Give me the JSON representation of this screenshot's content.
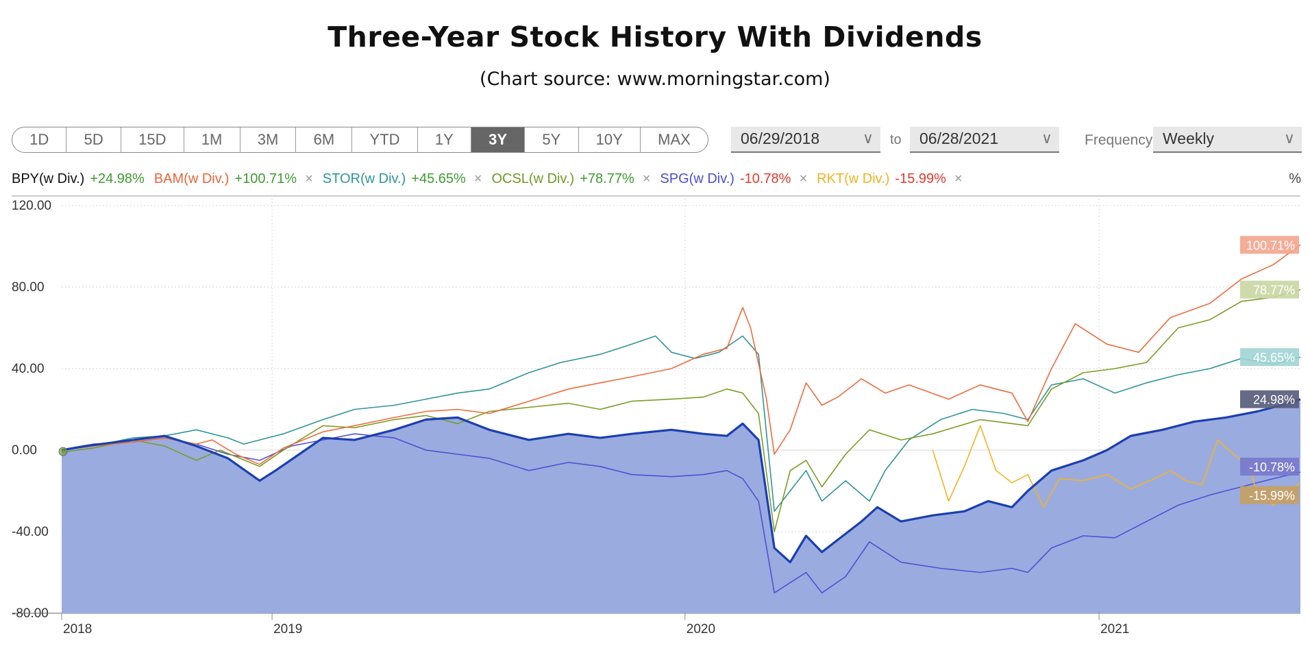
{
  "title": "Three-Year Stock History With Dividends",
  "subtitle": "(Chart source: www.morningstar.com)",
  "controls": {
    "ranges": [
      "1D",
      "5D",
      "15D",
      "1M",
      "3M",
      "6M",
      "YTD",
      "1Y",
      "3Y",
      "5Y",
      "10Y",
      "MAX"
    ],
    "active_range": "3Y",
    "start_date": "06/29/2018",
    "to_label": "to",
    "end_date": "06/28/2021",
    "frequency_label": "Frequency",
    "frequency_value": "Weekly",
    "unit_label": "%"
  },
  "legend": [
    {
      "name": "BPY(w Div.)",
      "change": "+24.98%",
      "name_color": "#111111",
      "change_color": "#3e9a2e",
      "removable": false
    },
    {
      "name": "BAM(w Div.)",
      "change": "+100.71%",
      "name_color": "#e8643a",
      "change_color": "#3e9a2e",
      "removable": true
    },
    {
      "name": "STOR(w Div.)",
      "change": "+45.65%",
      "name_color": "#2e9598",
      "change_color": "#3e9a2e",
      "removable": true
    },
    {
      "name": "OCSL(w Div.)",
      "change": "+78.77%",
      "name_color": "#6f9a22",
      "change_color": "#3e9a2e",
      "removable": true
    },
    {
      "name": "SPG(w Div.)",
      "change": "-10.78%",
      "name_color": "#4a4ed6",
      "change_color": "#e03a2e",
      "removable": true
    },
    {
      "name": "RKT(w Div.)",
      "change": "-15.99%",
      "name_color": "#f1b21f",
      "change_color": "#e03a2e",
      "removable": true
    }
  ],
  "chart_data": {
    "type": "line",
    "x_type": "date",
    "y_unit": "%",
    "ylim": [
      -80,
      120
    ],
    "y_ticks": [
      "120.00",
      "80.00",
      "40.00",
      "0.00",
      "-40.00",
      "-80.00"
    ],
    "x_ticks": [
      "2018",
      "2019",
      "2020",
      "2021"
    ],
    "grid": true,
    "end_labels": [
      "100.71%",
      "78.77%",
      "45.65%",
      "24.98%",
      "-10.78%",
      "-15.99%"
    ],
    "series": [
      {
        "name": "BAM(w Div.)",
        "color": "#ee6b3d",
        "end_label": "100.71%",
        "label_bg": "#f3a48c",
        "points": [
          [
            "2018-06-29",
            0
          ],
          [
            "2018-07-27",
            2
          ],
          [
            "2018-08-31",
            4
          ],
          [
            "2018-09-28",
            6
          ],
          [
            "2018-10-26",
            3
          ],
          [
            "2018-11-09",
            5
          ],
          [
            "2018-11-30",
            -2
          ],
          [
            "2018-12-21",
            -7
          ],
          [
            "2019-01-11",
            1
          ],
          [
            "2019-02-15",
            9
          ],
          [
            "2019-03-15",
            12
          ],
          [
            "2019-04-19",
            16
          ],
          [
            "2019-05-17",
            19
          ],
          [
            "2019-06-14",
            20
          ],
          [
            "2019-07-12",
            18
          ],
          [
            "2019-08-16",
            24
          ],
          [
            "2019-09-20",
            30
          ],
          [
            "2019-10-18",
            33
          ],
          [
            "2019-11-15",
            36
          ],
          [
            "2019-12-20",
            40
          ],
          [
            "2020-01-17",
            47
          ],
          [
            "2020-02-07",
            50
          ],
          [
            "2020-02-21",
            70
          ],
          [
            "2020-02-28",
            60
          ],
          [
            "2020-03-13",
            25
          ],
          [
            "2020-03-20",
            -2
          ],
          [
            "2020-04-03",
            10
          ],
          [
            "2020-04-17",
            33
          ],
          [
            "2020-05-01",
            22
          ],
          [
            "2020-05-15",
            26
          ],
          [
            "2020-06-05",
            35
          ],
          [
            "2020-06-26",
            28
          ],
          [
            "2020-07-17",
            32
          ],
          [
            "2020-08-21",
            25
          ],
          [
            "2020-09-18",
            32
          ],
          [
            "2020-10-16",
            28
          ],
          [
            "2020-10-30",
            14
          ],
          [
            "2020-11-20",
            40
          ],
          [
            "2020-12-11",
            62
          ],
          [
            "2021-01-08",
            52
          ],
          [
            "2021-02-05",
            48
          ],
          [
            "2021-03-05",
            65
          ],
          [
            "2021-04-09",
            72
          ],
          [
            "2021-05-07",
            84
          ],
          [
            "2021-06-04",
            91
          ],
          [
            "2021-06-28",
            100.71
          ]
        ]
      },
      {
        "name": "OCSL(w Div.)",
        "color": "#7b9c24",
        "end_label": "78.77%",
        "label_bg": "#c9d6a3",
        "points": [
          [
            "2018-06-29",
            -1
          ],
          [
            "2018-07-27",
            1
          ],
          [
            "2018-08-31",
            5
          ],
          [
            "2018-09-28",
            2
          ],
          [
            "2018-10-26",
            -5
          ],
          [
            "2018-11-16",
            0
          ],
          [
            "2018-12-21",
            -8
          ],
          [
            "2019-01-11",
            0
          ],
          [
            "2019-02-15",
            12
          ],
          [
            "2019-03-15",
            11
          ],
          [
            "2019-04-19",
            15
          ],
          [
            "2019-05-17",
            17
          ],
          [
            "2019-06-14",
            13
          ],
          [
            "2019-07-12",
            19
          ],
          [
            "2019-08-16",
            21
          ],
          [
            "2019-09-20",
            23
          ],
          [
            "2019-10-18",
            20
          ],
          [
            "2019-11-15",
            24
          ],
          [
            "2019-12-20",
            25
          ],
          [
            "2020-01-17",
            26
          ],
          [
            "2020-02-07",
            30
          ],
          [
            "2020-02-21",
            28
          ],
          [
            "2020-03-06",
            18
          ],
          [
            "2020-03-20",
            -40
          ],
          [
            "2020-04-03",
            -10
          ],
          [
            "2020-04-17",
            -5
          ],
          [
            "2020-05-01",
            -18
          ],
          [
            "2020-05-22",
            -2
          ],
          [
            "2020-06-12",
            10
          ],
          [
            "2020-07-10",
            5
          ],
          [
            "2020-08-07",
            8
          ],
          [
            "2020-09-18",
            15
          ],
          [
            "2020-10-16",
            13
          ],
          [
            "2020-10-30",
            12
          ],
          [
            "2020-11-20",
            30
          ],
          [
            "2020-12-18",
            38
          ],
          [
            "2021-01-15",
            40
          ],
          [
            "2021-02-12",
            43
          ],
          [
            "2021-03-12",
            60
          ],
          [
            "2021-04-09",
            64
          ],
          [
            "2021-05-07",
            73
          ],
          [
            "2021-06-04",
            75
          ],
          [
            "2021-06-28",
            78.77
          ]
        ]
      },
      {
        "name": "STOR(w Div.)",
        "color": "#2f9597",
        "end_label": "45.65%",
        "label_bg": "#9fd4d3",
        "points": [
          [
            "2018-06-29",
            0
          ],
          [
            "2018-07-27",
            2
          ],
          [
            "2018-08-31",
            6
          ],
          [
            "2018-09-28",
            7
          ],
          [
            "2018-10-26",
            10
          ],
          [
            "2018-11-23",
            6
          ],
          [
            "2018-12-07",
            3
          ],
          [
            "2019-01-11",
            8
          ],
          [
            "2019-02-15",
            15
          ],
          [
            "2019-03-15",
            20
          ],
          [
            "2019-04-19",
            22
          ],
          [
            "2019-05-17",
            25
          ],
          [
            "2019-06-14",
            28
          ],
          [
            "2019-07-12",
            30
          ],
          [
            "2019-08-16",
            38
          ],
          [
            "2019-09-13",
            43
          ],
          [
            "2019-10-18",
            47
          ],
          [
            "2019-11-15",
            52
          ],
          [
            "2019-12-06",
            56
          ],
          [
            "2019-12-20",
            48
          ],
          [
            "2020-01-10",
            45
          ],
          [
            "2020-01-31",
            48
          ],
          [
            "2020-02-21",
            56
          ],
          [
            "2020-03-06",
            47
          ],
          [
            "2020-03-20",
            -30
          ],
          [
            "2020-04-03",
            -20
          ],
          [
            "2020-04-17",
            -10
          ],
          [
            "2020-05-01",
            -25
          ],
          [
            "2020-05-22",
            -15
          ],
          [
            "2020-06-12",
            -25
          ],
          [
            "2020-06-26",
            -10
          ],
          [
            "2020-07-17",
            5
          ],
          [
            "2020-08-14",
            15
          ],
          [
            "2020-09-11",
            20
          ],
          [
            "2020-10-09",
            18
          ],
          [
            "2020-10-30",
            15
          ],
          [
            "2020-11-20",
            32
          ],
          [
            "2020-12-18",
            35
          ],
          [
            "2021-01-15",
            28
          ],
          [
            "2021-02-12",
            33
          ],
          [
            "2021-03-12",
            37
          ],
          [
            "2021-04-09",
            40
          ],
          [
            "2021-05-07",
            45
          ],
          [
            "2021-06-04",
            42
          ],
          [
            "2021-06-28",
            45.65
          ]
        ]
      },
      {
        "name": "BPY(w Div.)",
        "color": "#1a3fb0",
        "end_label": "24.98%",
        "label_bg": "#555a78",
        "fill": "#9aabdf",
        "points": [
          [
            "2018-06-29",
            0
          ],
          [
            "2018-07-20",
            2
          ],
          [
            "2018-08-31",
            5
          ],
          [
            "2018-09-28",
            7
          ],
          [
            "2018-10-26",
            2
          ],
          [
            "2018-11-23",
            -4
          ],
          [
            "2018-12-21",
            -15
          ],
          [
            "2019-01-04",
            -10
          ],
          [
            "2019-01-25",
            -2
          ],
          [
            "2019-02-15",
            6
          ],
          [
            "2019-03-15",
            5
          ],
          [
            "2019-04-19",
            10
          ],
          [
            "2019-05-17",
            15
          ],
          [
            "2019-06-14",
            16
          ],
          [
            "2019-07-12",
            10
          ],
          [
            "2019-08-16",
            5
          ],
          [
            "2019-09-20",
            8
          ],
          [
            "2019-10-18",
            6
          ],
          [
            "2019-11-15",
            8
          ],
          [
            "2019-12-20",
            10
          ],
          [
            "2020-01-17",
            8
          ],
          [
            "2020-02-07",
            7
          ],
          [
            "2020-02-21",
            13
          ],
          [
            "2020-03-06",
            5
          ],
          [
            "2020-03-20",
            -48
          ],
          [
            "2020-04-03",
            -55
          ],
          [
            "2020-04-17",
            -42
          ],
          [
            "2020-05-01",
            -50
          ],
          [
            "2020-05-15",
            -44
          ],
          [
            "2020-06-05",
            -35
          ],
          [
            "2020-06-19",
            -28
          ],
          [
            "2020-07-10",
            -35
          ],
          [
            "2020-08-07",
            -32
          ],
          [
            "2020-09-04",
            -30
          ],
          [
            "2020-09-25",
            -25
          ],
          [
            "2020-10-16",
            -28
          ],
          [
            "2020-10-30",
            -20
          ],
          [
            "2020-11-20",
            -10
          ],
          [
            "2020-12-18",
            -5
          ],
          [
            "2021-01-08",
            0
          ],
          [
            "2021-01-29",
            7
          ],
          [
            "2021-02-26",
            10
          ],
          [
            "2021-03-26",
            14
          ],
          [
            "2021-04-23",
            16
          ],
          [
            "2021-05-21",
            19
          ],
          [
            "2021-06-11",
            22
          ],
          [
            "2021-06-28",
            24.98
          ]
        ]
      },
      {
        "name": "SPG(w Div.)",
        "color": "#4f4fd4",
        "end_label": "-10.78%",
        "label_bg": "#7878cc",
        "points": [
          [
            "2018-06-29",
            0
          ],
          [
            "2018-07-27",
            3
          ],
          [
            "2018-08-31",
            4
          ],
          [
            "2018-09-28",
            6
          ],
          [
            "2018-10-26",
            3
          ],
          [
            "2018-11-23",
            -2
          ],
          [
            "2018-12-21",
            -5
          ],
          [
            "2019-01-18",
            2
          ],
          [
            "2019-02-15",
            5
          ],
          [
            "2019-03-15",
            8
          ],
          [
            "2019-04-19",
            6
          ],
          [
            "2019-05-17",
            0
          ],
          [
            "2019-06-14",
            -2
          ],
          [
            "2019-07-12",
            -4
          ],
          [
            "2019-08-16",
            -10
          ],
          [
            "2019-09-20",
            -6
          ],
          [
            "2019-10-18",
            -8
          ],
          [
            "2019-11-15",
            -12
          ],
          [
            "2019-12-20",
            -13
          ],
          [
            "2020-01-17",
            -12
          ],
          [
            "2020-02-07",
            -10
          ],
          [
            "2020-02-21",
            -14
          ],
          [
            "2020-03-06",
            -25
          ],
          [
            "2020-03-20",
            -70
          ],
          [
            "2020-04-03",
            -65
          ],
          [
            "2020-04-17",
            -60
          ],
          [
            "2020-05-01",
            -70
          ],
          [
            "2020-05-22",
            -62
          ],
          [
            "2020-06-12",
            -45
          ],
          [
            "2020-07-10",
            -55
          ],
          [
            "2020-08-14",
            -58
          ],
          [
            "2020-09-18",
            -60
          ],
          [
            "2020-10-16",
            -58
          ],
          [
            "2020-10-30",
            -60
          ],
          [
            "2020-11-20",
            -48
          ],
          [
            "2020-12-18",
            -42
          ],
          [
            "2021-01-15",
            -43
          ],
          [
            "2021-02-12",
            -35
          ],
          [
            "2021-03-12",
            -27
          ],
          [
            "2021-04-09",
            -22
          ],
          [
            "2021-05-07",
            -18
          ],
          [
            "2021-06-04",
            -14
          ],
          [
            "2021-06-28",
            -10.78
          ]
        ]
      },
      {
        "name": "RKT(w Div.)",
        "color": "#f4b223",
        "end_label": "-15.99%",
        "label_bg": "#c7a062",
        "points": [
          [
            "2020-08-07",
            0
          ],
          [
            "2020-08-21",
            -25
          ],
          [
            "2020-09-04",
            -8
          ],
          [
            "2020-09-18",
            12
          ],
          [
            "2020-10-02",
            -10
          ],
          [
            "2020-10-16",
            -16
          ],
          [
            "2020-10-30",
            -12
          ],
          [
            "2020-11-13",
            -28
          ],
          [
            "2020-11-27",
            -14
          ],
          [
            "2020-12-18",
            -15
          ],
          [
            "2021-01-08",
            -12
          ],
          [
            "2021-01-29",
            -19
          ],
          [
            "2021-02-19",
            -14
          ],
          [
            "2021-03-05",
            -10
          ],
          [
            "2021-03-19",
            -15
          ],
          [
            "2021-04-02",
            -17
          ],
          [
            "2021-04-16",
            5
          ],
          [
            "2021-04-30",
            -2
          ],
          [
            "2021-05-14",
            -8
          ],
          [
            "2021-05-21",
            -22
          ],
          [
            "2021-06-04",
            -27
          ],
          [
            "2021-06-18",
            -20
          ],
          [
            "2021-06-28",
            -15.99
          ]
        ]
      }
    ]
  }
}
